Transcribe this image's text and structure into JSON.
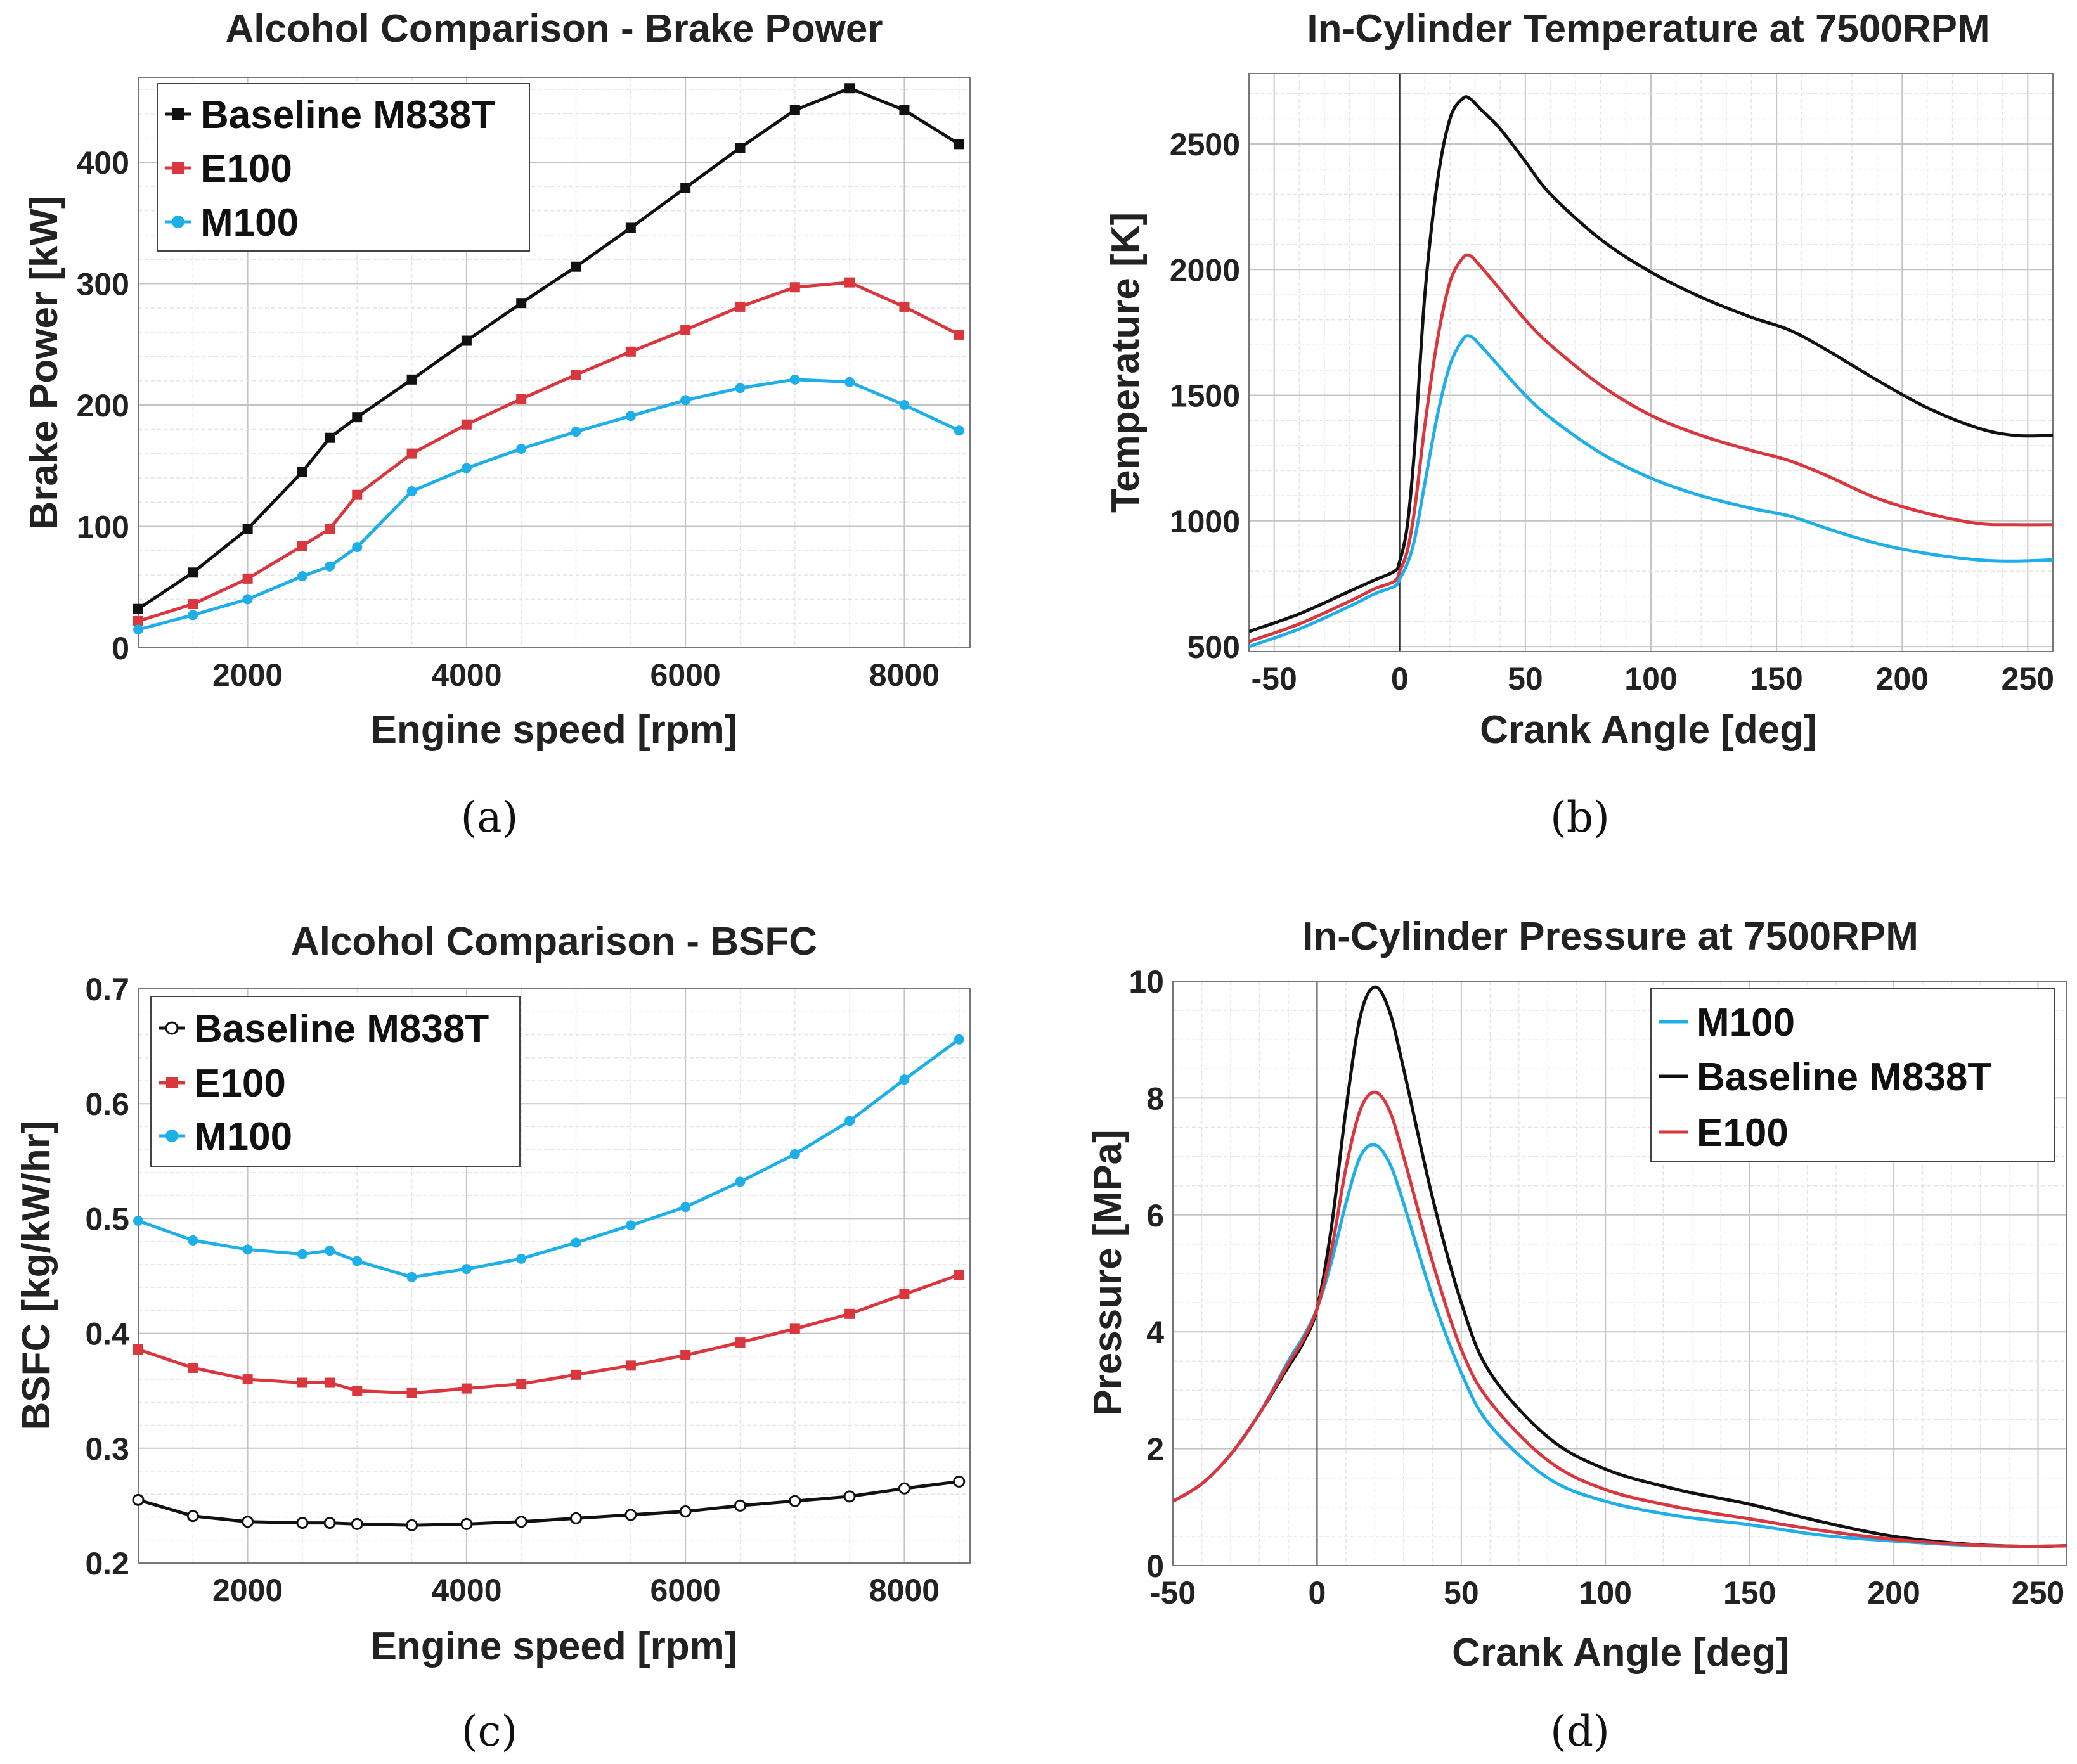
{
  "chart_data": [
    {
      "id": "a",
      "type": "line",
      "caption": "(a)",
      "title": "Alcohol Comparison - Brake Power",
      "xlabel": "Engine speed [rpm]",
      "ylabel": "Brake Power [kW]",
      "xlim": [
        1000,
        8600
      ],
      "ylim": [
        0,
        470
      ],
      "xticks": [
        2000,
        4000,
        6000,
        8000
      ],
      "yticks": [
        0,
        100,
        200,
        300,
        400
      ],
      "grid": true,
      "legend_position": "top-left",
      "series": [
        {
          "name": "Baseline M838T",
          "color": "#111111",
          "marker": "square",
          "x": [
            1000,
            1500,
            2000,
            2500,
            2750,
            3000,
            3500,
            4000,
            4500,
            5000,
            5500,
            6000,
            6500,
            7000,
            7500,
            8000,
            8500
          ],
          "y": [
            32,
            62,
            98,
            145,
            173,
            190,
            221,
            253,
            284,
            314,
            346,
            379,
            412,
            443,
            461,
            443,
            415
          ]
        },
        {
          "name": "E100",
          "color": "#d9363e",
          "marker": "square",
          "x": [
            1000,
            1500,
            2000,
            2500,
            2750,
            3000,
            3500,
            4000,
            4500,
            5000,
            5500,
            6000,
            6500,
            7000,
            7500,
            8000,
            8500
          ],
          "y": [
            22,
            36,
            57,
            84,
            98,
            126,
            160,
            184,
            205,
            225,
            244,
            262,
            281,
            297,
            301,
            281,
            258
          ]
        },
        {
          "name": "M100",
          "color": "#1eaee8",
          "marker": "circle",
          "x": [
            1000,
            1500,
            2000,
            2500,
            2750,
            3000,
            3500,
            4000,
            4500,
            5000,
            5500,
            6000,
            6500,
            7000,
            7500,
            8000,
            8500
          ],
          "y": [
            15,
            27,
            40,
            59,
            67,
            83,
            129,
            148,
            164,
            178,
            191,
            204,
            214,
            221,
            219,
            200,
            179
          ]
        }
      ]
    },
    {
      "id": "b",
      "type": "line",
      "caption": "(b)",
      "title": "In-Cylinder Temperature at 7500RPM",
      "xlabel": "Crank Angle [deg]",
      "ylabel": "Temperature [K]",
      "xlim": [
        -60,
        260
      ],
      "ylim": [
        480,
        2780
      ],
      "xticks": [
        -50,
        0,
        50,
        100,
        150,
        200,
        250
      ],
      "yticks": [
        500,
        1000,
        1500,
        2000,
        2500
      ],
      "grid": true,
      "vline_at": 0,
      "series": [
        {
          "name": "Baseline M838T",
          "color": "#111111",
          "x": [
            -60,
            -40,
            -20,
            -10,
            -2,
            0,
            3,
            6,
            10,
            15,
            20,
            25,
            28,
            32,
            40,
            50,
            60,
            80,
            100,
            120,
            140,
            155,
            170,
            190,
            210,
            230,
            245,
            260
          ],
          "y": [
            560,
            630,
            720,
            765,
            800,
            840,
            980,
            1300,
            1900,
            2350,
            2600,
            2680,
            2680,
            2640,
            2560,
            2430,
            2300,
            2120,
            1990,
            1890,
            1810,
            1760,
            1680,
            1560,
            1450,
            1370,
            1340,
            1340
          ]
        },
        {
          "name": "E100",
          "color": "#d9363e",
          "x": [
            -60,
            -40,
            -20,
            -10,
            -2,
            0,
            3,
            6,
            10,
            15,
            20,
            25,
            28,
            32,
            40,
            50,
            60,
            80,
            100,
            120,
            140,
            155,
            170,
            190,
            210,
            230,
            245,
            260
          ],
          "y": [
            520,
            590,
            680,
            730,
            760,
            800,
            880,
            1050,
            1380,
            1720,
            1950,
            2045,
            2055,
            2015,
            1920,
            1800,
            1700,
            1540,
            1420,
            1340,
            1280,
            1240,
            1180,
            1090,
            1030,
            990,
            985,
            985
          ]
        },
        {
          "name": "M100",
          "color": "#1eaee8",
          "x": [
            -60,
            -40,
            -20,
            -10,
            -2,
            0,
            3,
            6,
            10,
            15,
            20,
            25,
            28,
            32,
            40,
            50,
            60,
            80,
            100,
            120,
            140,
            155,
            170,
            190,
            210,
            230,
            245,
            260
          ],
          "y": [
            500,
            570,
            660,
            710,
            740,
            770,
            830,
            930,
            1150,
            1420,
            1620,
            1720,
            1735,
            1700,
            1610,
            1500,
            1410,
            1270,
            1170,
            1100,
            1050,
            1020,
            970,
            910,
            870,
            845,
            840,
            845
          ]
        }
      ]
    },
    {
      "id": "c",
      "type": "line",
      "caption": "(c)",
      "title": "Alcohol Comparison - BSFC",
      "xlabel": "Engine speed [rpm]",
      "ylabel": "BSFC [kg/kW/hr]",
      "xlim": [
        1000,
        8600
      ],
      "ylim": [
        0.2,
        0.7
      ],
      "xticks": [
        2000,
        4000,
        6000,
        8000
      ],
      "yticks": [
        0.2,
        0.3,
        0.4,
        0.5,
        0.6,
        0.7
      ],
      "grid": true,
      "legend_position": "top-left",
      "series": [
        {
          "name": "Baseline M838T",
          "color": "#111111",
          "marker": "open-circle",
          "x": [
            1000,
            1500,
            2000,
            2500,
            2750,
            3000,
            3500,
            4000,
            4500,
            5000,
            5500,
            6000,
            6500,
            7000,
            7500,
            8000,
            8500
          ],
          "y": [
            0.255,
            0.241,
            0.236,
            0.235,
            0.235,
            0.234,
            0.233,
            0.234,
            0.236,
            0.239,
            0.242,
            0.245,
            0.25,
            0.254,
            0.258,
            0.265,
            0.271
          ]
        },
        {
          "name": "E100",
          "color": "#d9363e",
          "marker": "square",
          "x": [
            1000,
            1500,
            2000,
            2500,
            2750,
            3000,
            3500,
            4000,
            4500,
            5000,
            5500,
            6000,
            6500,
            7000,
            7500,
            8000,
            8500
          ],
          "y": [
            0.386,
            0.37,
            0.36,
            0.357,
            0.357,
            0.35,
            0.348,
            0.352,
            0.356,
            0.364,
            0.372,
            0.381,
            0.392,
            0.404,
            0.417,
            0.434,
            0.451
          ]
        },
        {
          "name": "M100",
          "color": "#1eaee8",
          "marker": "circle",
          "x": [
            1000,
            1500,
            2000,
            2500,
            2750,
            3000,
            3500,
            4000,
            4500,
            5000,
            5500,
            6000,
            6500,
            7000,
            7500,
            8000,
            8500
          ],
          "y": [
            0.498,
            0.481,
            0.473,
            0.469,
            0.472,
            0.463,
            0.449,
            0.456,
            0.465,
            0.479,
            0.494,
            0.51,
            0.532,
            0.556,
            0.585,
            0.621,
            0.656
          ]
        }
      ]
    },
    {
      "id": "d",
      "type": "line",
      "caption": "(d)",
      "title": "In-Cylinder Pressure at 7500RPM",
      "xlabel": "Crank Angle [deg]",
      "ylabel": "Pressure [MPa]",
      "xlim": [
        -50,
        260
      ],
      "ylim": [
        0,
        10
      ],
      "xticks": [
        -50,
        0,
        50,
        100,
        150,
        200,
        250
      ],
      "yticks": [
        0,
        2,
        4,
        6,
        8,
        10
      ],
      "grid": true,
      "vline_at": 0,
      "legend_position": "top-right",
      "series": [
        {
          "name": "M100",
          "color": "#1eaee8",
          "x": [
            -50,
            -40,
            -30,
            -20,
            -10,
            -5,
            0,
            5,
            10,
            15,
            20,
            25,
            30,
            40,
            50,
            60,
            80,
            100,
            125,
            150,
            175,
            200,
            225,
            245,
            260
          ],
          "y": [
            1.1,
            1.4,
            1.9,
            2.6,
            3.5,
            3.9,
            4.4,
            5.2,
            6.2,
            7.0,
            7.2,
            6.9,
            6.2,
            4.6,
            3.3,
            2.4,
            1.5,
            1.1,
            0.85,
            0.7,
            0.52,
            0.42,
            0.35,
            0.33,
            0.34
          ]
        },
        {
          "name": "Baseline M838T",
          "color": "#111111",
          "x": [
            -50,
            -40,
            -30,
            -20,
            -10,
            -5,
            0,
            5,
            10,
            15,
            20,
            25,
            30,
            40,
            50,
            60,
            80,
            100,
            125,
            150,
            175,
            200,
            225,
            245,
            260
          ],
          "y": [
            1.1,
            1.4,
            1.9,
            2.6,
            3.4,
            3.8,
            4.4,
            5.8,
            7.8,
            9.4,
            9.9,
            9.5,
            8.5,
            6.3,
            4.5,
            3.3,
            2.2,
            1.65,
            1.3,
            1.05,
            0.75,
            0.5,
            0.37,
            0.33,
            0.34
          ]
        },
        {
          "name": "E100",
          "color": "#d9363e",
          "x": [
            -50,
            -40,
            -30,
            -20,
            -10,
            -5,
            0,
            5,
            10,
            15,
            20,
            25,
            30,
            40,
            50,
            60,
            80,
            100,
            125,
            150,
            175,
            200,
            225,
            245,
            260
          ],
          "y": [
            1.1,
            1.4,
            1.9,
            2.6,
            3.45,
            3.85,
            4.4,
            5.4,
            6.8,
            7.8,
            8.1,
            7.8,
            7.0,
            5.2,
            3.7,
            2.8,
            1.8,
            1.3,
            1.0,
            0.8,
            0.6,
            0.45,
            0.36,
            0.33,
            0.34
          ]
        }
      ]
    }
  ]
}
